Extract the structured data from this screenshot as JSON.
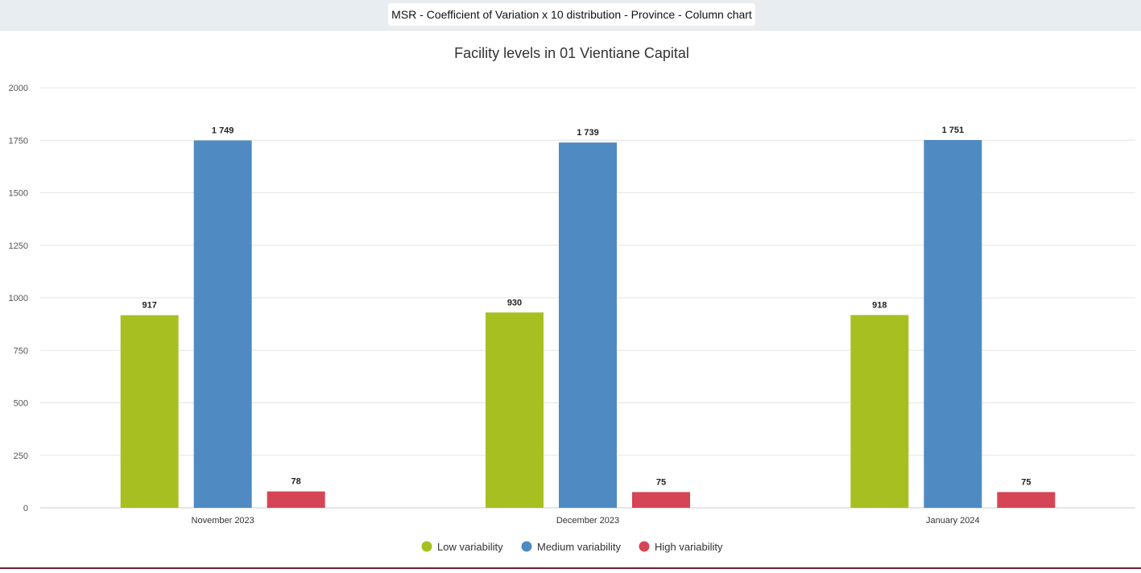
{
  "header": {
    "title": "MSR - Coefficient of Variation x 10 distribution - Province - Column chart"
  },
  "colors": {
    "low": "#a8bf22",
    "medium": "#4f8bc2",
    "high": "#d64555",
    "grid": "#e6e6e6",
    "header_bg": "#e8edf1",
    "footer_line": "#7b1c2a"
  },
  "chart_data": {
    "type": "bar",
    "title": "Facility levels in 01 Vientiane Capital",
    "xlabel": "",
    "ylabel": "",
    "ylim": [
      0,
      2000
    ],
    "yticks": [
      "0",
      "250",
      "500",
      "750",
      "1000",
      "1250",
      "1500",
      "1750",
      "2000"
    ],
    "yticks_values": [
      0,
      250,
      500,
      750,
      1000,
      1250,
      1500,
      1750,
      2000
    ],
    "categories": [
      "November 2023",
      "December 2023",
      "January 2024"
    ],
    "series": [
      {
        "name": "Low variability",
        "color_key": "low",
        "values": [
          917,
          930,
          918
        ],
        "labels": [
          "917",
          "930",
          "918"
        ]
      },
      {
        "name": "Medium variability",
        "color_key": "medium",
        "values": [
          1749,
          1739,
          1751
        ],
        "labels": [
          "1 749",
          "1 739",
          "1 751"
        ]
      },
      {
        "name": "High variability",
        "color_key": "high",
        "values": [
          78,
          75,
          75
        ],
        "labels": [
          "78",
          "75",
          "75"
        ]
      }
    ],
    "grid": true,
    "legend": "bottom-center"
  }
}
